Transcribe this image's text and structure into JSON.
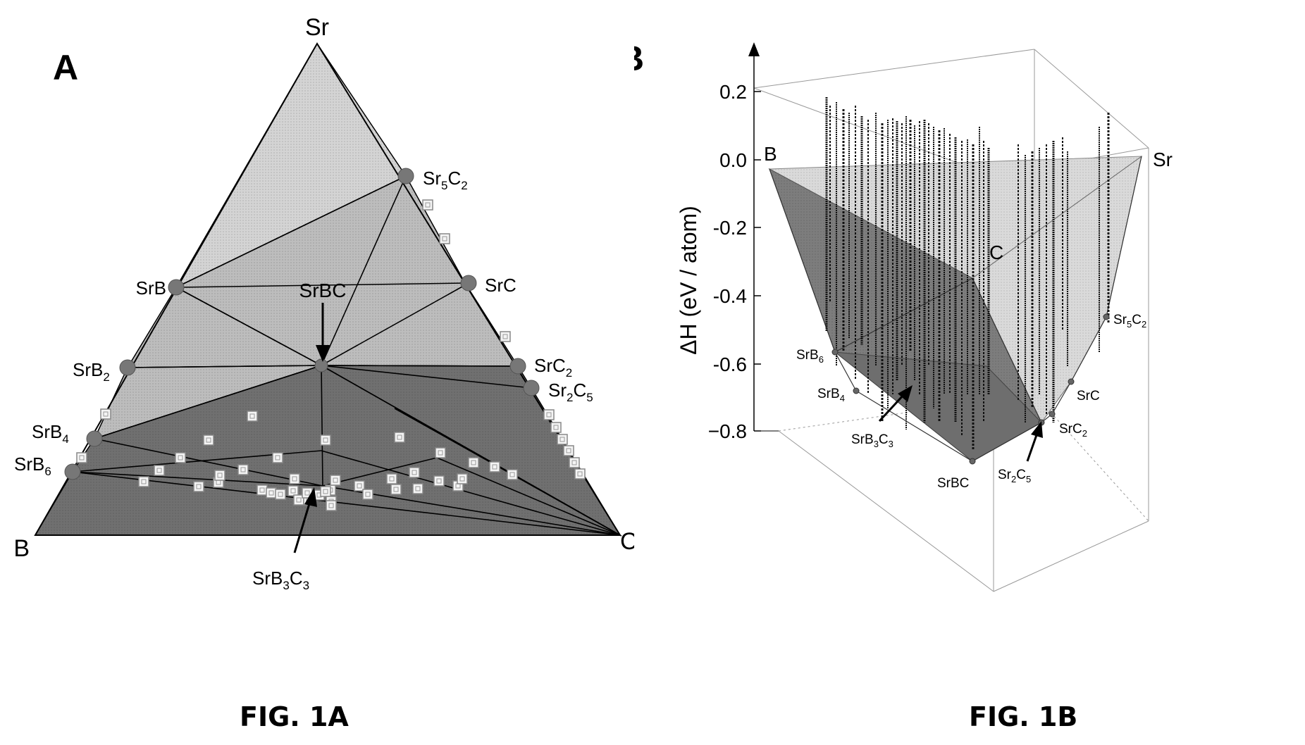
{
  "panel_a": {
    "letter": "A",
    "vertices": {
      "top": "Sr",
      "left": "B",
      "right": "C"
    },
    "phases": [
      {
        "key": "sr5c2",
        "base": "Sr",
        "sub1": "5",
        "mid": "C",
        "sub2": "2"
      },
      {
        "key": "srb",
        "base": "SrB",
        "sub1": "",
        "mid": "",
        "sub2": ""
      },
      {
        "key": "src",
        "base": "SrC",
        "sub1": "",
        "mid": "",
        "sub2": ""
      },
      {
        "key": "srb2",
        "base": "SrB",
        "sub1": "2",
        "mid": "",
        "sub2": ""
      },
      {
        "key": "src2",
        "base": "SrC",
        "sub1": "2",
        "mid": "",
        "sub2": ""
      },
      {
        "key": "sr2c5",
        "base": "Sr",
        "sub1": "2",
        "mid": "C",
        "sub2": "5"
      },
      {
        "key": "srb4",
        "base": "SrB",
        "sub1": "4",
        "mid": "",
        "sub2": ""
      },
      {
        "key": "srb6",
        "base": "SrB",
        "sub1": "6",
        "mid": "",
        "sub2": ""
      }
    ],
    "annotations": [
      {
        "key": "srbc",
        "text": "SrBC"
      },
      {
        "key": "srb3c3",
        "base": "SrB",
        "sub1": "3",
        "mid": "C",
        "sub2": "3"
      }
    ],
    "colors": {
      "light_region": "#cfcfcf",
      "mid_region": "#b8b8b8",
      "dark_region": "#6e6e6e",
      "phase_dot": "#777777"
    }
  },
  "panel_b": {
    "letter": "B",
    "ylabel": "ΔH (eV / atom)",
    "yticks": [
      "0.2",
      "0.0",
      "-0.2",
      "-0.4",
      "-0.6",
      "−0.8"
    ],
    "corners": {
      "b": "B",
      "sr": "Sr",
      "c": "C"
    },
    "phases": [
      {
        "key": "srb6",
        "base": "SrB",
        "sub1": "6",
        "mid": "",
        "sub2": ""
      },
      {
        "key": "srb4",
        "base": "SrB",
        "sub1": "4",
        "mid": "",
        "sub2": ""
      },
      {
        "key": "srb3c3",
        "base": "SrB",
        "sub1": "3",
        "mid": "C",
        "sub2": "3"
      },
      {
        "key": "srbc",
        "base": "SrBC",
        "sub1": "",
        "mid": "",
        "sub2": ""
      },
      {
        "key": "sr2c5",
        "base": "Sr",
        "sub1": "2",
        "mid": "C",
        "sub2": "5"
      },
      {
        "key": "src2",
        "base": "SrC",
        "sub1": "2",
        "mid": "",
        "sub2": ""
      },
      {
        "key": "src",
        "base": "SrC",
        "sub1": "",
        "mid": "",
        "sub2": ""
      },
      {
        "key": "sr5c2",
        "base": "Sr",
        "sub1": "5",
        "mid": "C",
        "sub2": "2"
      }
    ],
    "colors": {
      "hull_dark": "#7a7a7a",
      "hull_light": "#d6d6d6"
    }
  },
  "captions": {
    "a": "FIG. 1A",
    "b": "FIG. 1B"
  }
}
